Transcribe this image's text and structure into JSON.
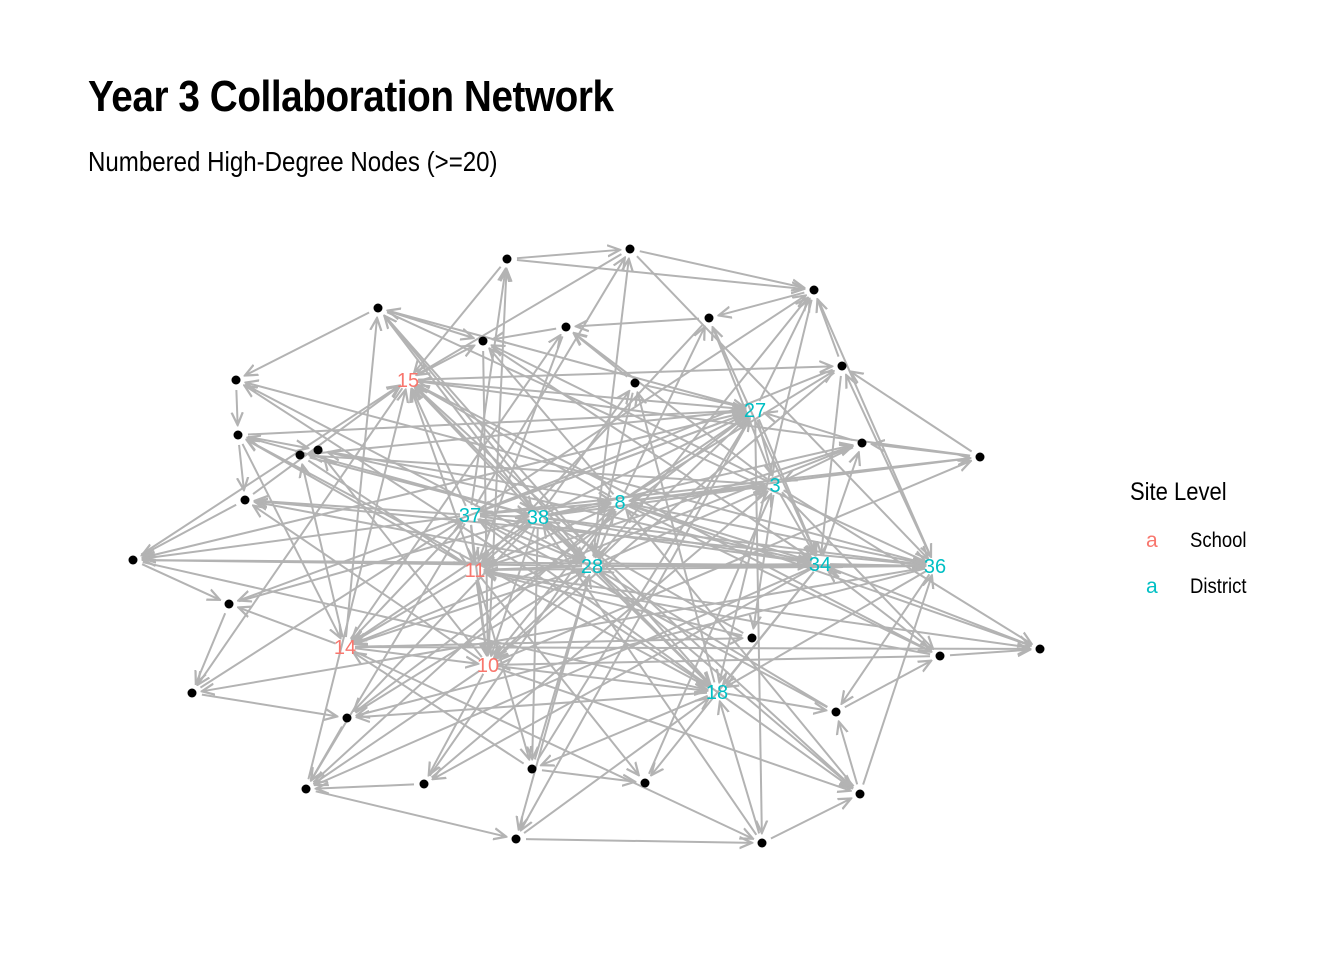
{
  "title": "Year 3 Collaboration Network",
  "subtitle": "Numbered High-Degree Nodes (>=20)",
  "legend": {
    "title": "Site Level",
    "key_glyph": "a",
    "items": [
      {
        "label": "School",
        "color": "#F8766D"
      },
      {
        "label": "District",
        "color": "#00BFC4"
      }
    ]
  },
  "colors": {
    "edge": "#b3b3b3",
    "point": "#000000"
  },
  "chart_data": {
    "type": "network",
    "directed": true,
    "labeled_nodes": [
      {
        "id": "15",
        "level": "School"
      },
      {
        "id": "27",
        "level": "District"
      },
      {
        "id": "3",
        "level": "District"
      },
      {
        "id": "8",
        "level": "District"
      },
      {
        "id": "37",
        "level": "District"
      },
      {
        "id": "38",
        "level": "District"
      },
      {
        "id": "11",
        "level": "School"
      },
      {
        "id": "28",
        "level": "District"
      },
      {
        "id": "34",
        "level": "District"
      },
      {
        "id": "36",
        "level": "District"
      },
      {
        "id": "14",
        "level": "School"
      },
      {
        "id": "10",
        "level": "School"
      },
      {
        "id": "18",
        "level": "District"
      }
    ],
    "unlabeled_node_count": 31,
    "edges": [
      [
        "37",
        "38"
      ],
      [
        "37",
        "11"
      ],
      [
        "37",
        "28"
      ],
      [
        "37",
        "8"
      ],
      [
        "37",
        "15"
      ],
      [
        "37",
        "14"
      ],
      [
        "37",
        "10"
      ],
      [
        "37",
        "34"
      ],
      [
        "37",
        "27"
      ],
      [
        "38",
        "28"
      ],
      [
        "38",
        "11"
      ],
      [
        "38",
        "8"
      ],
      [
        "38",
        "15"
      ],
      [
        "38",
        "10"
      ],
      [
        "38",
        "14"
      ],
      [
        "38",
        "27"
      ],
      [
        "38",
        "3"
      ],
      [
        "38",
        "34"
      ],
      [
        "38",
        "36"
      ],
      [
        "38",
        "18"
      ],
      [
        "8",
        "28"
      ],
      [
        "8",
        "27"
      ],
      [
        "8",
        "3"
      ],
      [
        "8",
        "15"
      ],
      [
        "8",
        "11"
      ],
      [
        "8",
        "34"
      ],
      [
        "8",
        "36"
      ],
      [
        "8",
        "10"
      ],
      [
        "28",
        "11"
      ],
      [
        "28",
        "34"
      ],
      [
        "28",
        "36"
      ],
      [
        "28",
        "18"
      ],
      [
        "28",
        "10"
      ],
      [
        "28",
        "14"
      ],
      [
        "28",
        "15"
      ],
      [
        "28",
        "27"
      ],
      [
        "28",
        "3"
      ],
      [
        "11",
        "10"
      ],
      [
        "11",
        "14"
      ],
      [
        "11",
        "15"
      ],
      [
        "11",
        "36"
      ],
      [
        "14",
        "10"
      ],
      [
        "15",
        "27"
      ],
      [
        "27",
        "3"
      ],
      [
        "27",
        "34"
      ],
      [
        "3",
        "34"
      ],
      [
        "34",
        "36"
      ],
      [
        "34",
        "18"
      ],
      [
        "36",
        "18"
      ],
      [
        "10",
        "18"
      ]
    ]
  }
}
